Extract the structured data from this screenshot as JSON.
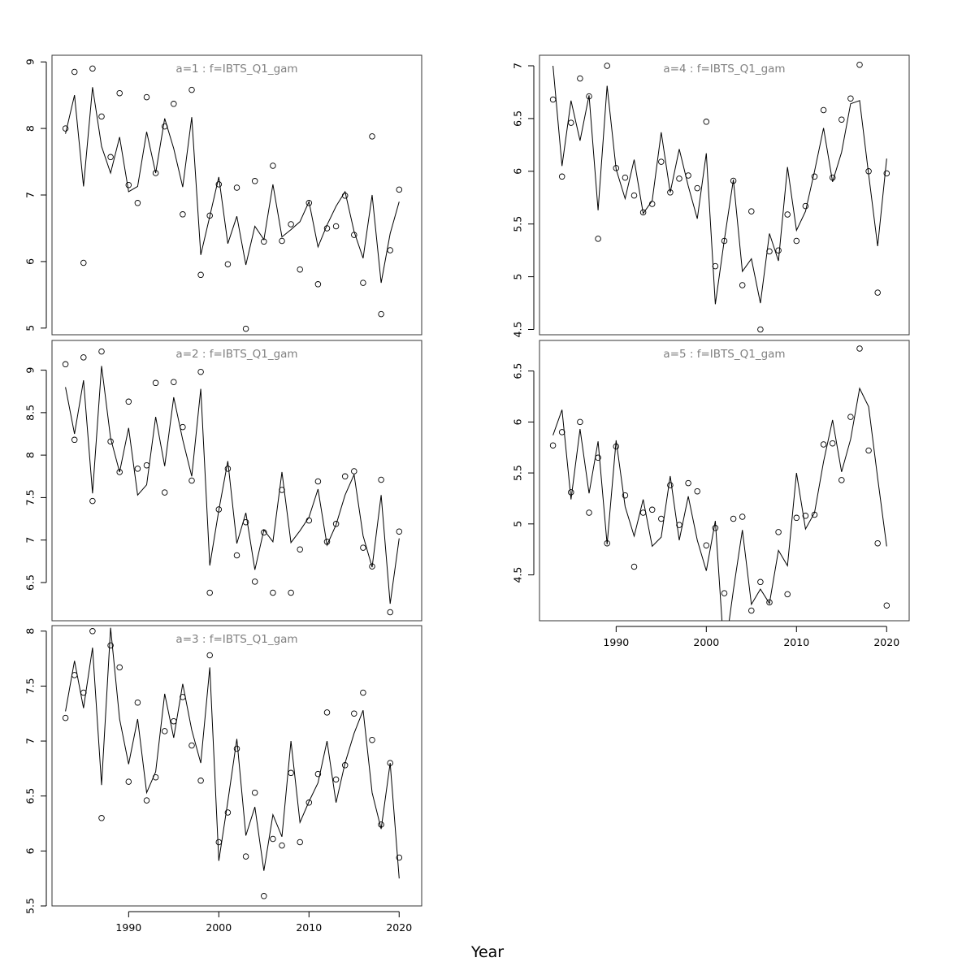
{
  "xlabel": "Year",
  "colors": {
    "line": "#000000",
    "points": "#000000",
    "title": "#808080",
    "frame": "#333333"
  },
  "chart_data": [
    {
      "type": "line",
      "title": "a=1  :  f=IBTS_Q1_gam",
      "xlim": [
        1981.5,
        2022.5
      ],
      "ylim": [
        4.9,
        9.1
      ],
      "yticks": [
        5,
        6,
        7,
        8,
        9
      ],
      "xticks": [
        1990,
        2000,
        2010,
        2020
      ],
      "show_xticks": false,
      "grid": false,
      "series": [
        {
          "kind": "line",
          "x": [
            1983,
            1984,
            1985,
            1986,
            1987,
            1988,
            1989,
            1990,
            1991,
            1992,
            1993,
            1994,
            1995,
            1996,
            1997,
            1998,
            1999,
            2000,
            2001,
            2002,
            2003,
            2004,
            2005,
            2006,
            2007,
            2008,
            2009,
            2010,
            2011,
            2012,
            2013,
            2014,
            2015,
            2016,
            2017,
            2018,
            2019,
            2020
          ],
          "y": [
            7.92,
            8.5,
            7.13,
            8.62,
            7.73,
            7.33,
            7.87,
            7.05,
            7.13,
            7.95,
            7.33,
            8.15,
            7.7,
            7.12,
            8.17,
            6.1,
            6.68,
            7.27,
            6.27,
            6.68,
            5.95,
            6.53,
            6.33,
            7.16,
            6.37,
            6.48,
            6.6,
            6.9,
            6.22,
            6.55,
            6.83,
            7.05,
            6.45,
            6.05,
            7.0,
            5.68,
            6.42,
            6.9
          ]
        },
        {
          "kind": "points",
          "x": [
            1983,
            1984,
            1985,
            1986,
            1987,
            1988,
            1989,
            1990,
            1991,
            1992,
            1993,
            1994,
            1995,
            1996,
            1997,
            1998,
            1999,
            2000,
            2001,
            2002,
            2003,
            2004,
            2005,
            2006,
            2007,
            2008,
            2009,
            2010,
            2011,
            2012,
            2013,
            2014,
            2015,
            2016,
            2017,
            2018,
            2019,
            2020
          ],
          "y": [
            8.0,
            8.85,
            5.98,
            8.9,
            8.18,
            7.57,
            8.53,
            7.15,
            6.88,
            8.47,
            7.33,
            8.03,
            8.37,
            6.71,
            8.58,
            5.8,
            6.69,
            7.16,
            5.96,
            7.11,
            4.99,
            7.21,
            6.3,
            7.44,
            6.31,
            6.56,
            5.88,
            6.88,
            5.66,
            6.5,
            6.53,
            6.99,
            6.4,
            5.68,
            7.88,
            5.21,
            6.17,
            7.08
          ]
        }
      ]
    },
    {
      "type": "line",
      "title": "a=2  :  f=IBTS_Q1_gam",
      "xlim": [
        1981.5,
        2022.5
      ],
      "ylim": [
        6.05,
        9.35
      ],
      "yticks": [
        6.5,
        7.0,
        7.5,
        8.0,
        8.5,
        9.0
      ],
      "xticks": [
        1990,
        2000,
        2010,
        2020
      ],
      "show_xticks": false,
      "grid": false,
      "series": [
        {
          "kind": "line",
          "x": [
            1983,
            1984,
            1985,
            1986,
            1987,
            1988,
            1989,
            1990,
            1991,
            1992,
            1993,
            1994,
            1995,
            1996,
            1997,
            1998,
            1999,
            2000,
            2001,
            2002,
            2003,
            2004,
            2005,
            2006,
            2007,
            2008,
            2009,
            2010,
            2011,
            2012,
            2013,
            2014,
            2015,
            2016,
            2017,
            2018,
            2019,
            2020
          ],
          "y": [
            8.8,
            8.25,
            8.88,
            7.55,
            9.05,
            8.2,
            7.8,
            8.32,
            7.53,
            7.65,
            8.45,
            7.87,
            8.68,
            8.18,
            7.75,
            8.78,
            6.7,
            7.35,
            7.93,
            6.96,
            7.32,
            6.65,
            7.12,
            6.98,
            7.8,
            6.97,
            7.11,
            7.27,
            7.6,
            6.94,
            7.18,
            7.53,
            7.77,
            7.05,
            6.68,
            7.53,
            6.25,
            7.02
          ]
        },
        {
          "kind": "points",
          "x": [
            1983,
            1984,
            1985,
            1986,
            1987,
            1988,
            1989,
            1990,
            1991,
            1992,
            1993,
            1994,
            1995,
            1996,
            1997,
            1998,
            1999,
            2000,
            2001,
            2002,
            2003,
            2004,
            2005,
            2006,
            2007,
            2008,
            2009,
            2010,
            2011,
            2012,
            2013,
            2014,
            2015,
            2016,
            2017,
            2018,
            2019,
            2020
          ],
          "y": [
            9.07,
            8.18,
            9.15,
            7.46,
            9.22,
            8.16,
            7.8,
            8.63,
            7.84,
            7.88,
            8.85,
            7.56,
            8.86,
            8.33,
            7.7,
            8.98,
            6.38,
            7.36,
            7.84,
            6.82,
            7.21,
            6.51,
            7.09,
            6.38,
            7.59,
            6.38,
            6.89,
            7.23,
            7.69,
            6.98,
            7.19,
            7.75,
            7.81,
            6.91,
            6.69,
            7.71,
            6.15,
            7.1
          ]
        }
      ]
    },
    {
      "type": "line",
      "title": "a=3  :  f=IBTS_Q1_gam",
      "xlim": [
        1981.5,
        2022.5
      ],
      "ylim": [
        5.5,
        8.05
      ],
      "yticks": [
        5.5,
        6.0,
        6.5,
        7.0,
        7.5,
        8.0
      ],
      "xticks": [
        1990,
        2000,
        2010,
        2020
      ],
      "show_xticks": true,
      "grid": false,
      "series": [
        {
          "kind": "line",
          "x": [
            1983,
            1984,
            1985,
            1986,
            1987,
            1988,
            1989,
            1990,
            1991,
            1992,
            1993,
            1994,
            1995,
            1996,
            1997,
            1998,
            1999,
            2000,
            2001,
            2002,
            2003,
            2004,
            2005,
            2006,
            2007,
            2008,
            2009,
            2010,
            2011,
            2012,
            2013,
            2014,
            2015,
            2016,
            2017,
            2018,
            2019,
            2020
          ],
          "y": [
            7.27,
            7.73,
            7.3,
            7.85,
            6.6,
            8.03,
            7.2,
            6.79,
            7.2,
            6.53,
            6.72,
            7.43,
            7.03,
            7.52,
            7.1,
            6.8,
            7.67,
            5.91,
            6.45,
            7.02,
            6.14,
            6.4,
            5.82,
            6.33,
            6.13,
            7.0,
            6.26,
            6.45,
            6.62,
            7.0,
            6.44,
            6.8,
            7.07,
            7.28,
            6.53,
            6.2,
            6.8,
            5.75
          ]
        },
        {
          "kind": "points",
          "x": [
            1983,
            1984,
            1985,
            1986,
            1987,
            1988,
            1989,
            1990,
            1991,
            1992,
            1993,
            1994,
            1995,
            1996,
            1997,
            1998,
            1999,
            2000,
            2001,
            2002,
            2003,
            2004,
            2005,
            2006,
            2007,
            2008,
            2009,
            2010,
            2011,
            2012,
            2013,
            2014,
            2015,
            2016,
            2017,
            2018,
            2019,
            2020
          ],
          "y": [
            7.21,
            7.6,
            7.44,
            8.0,
            6.3,
            7.87,
            7.67,
            6.63,
            7.35,
            6.46,
            6.67,
            7.09,
            7.18,
            7.4,
            6.96,
            6.64,
            7.78,
            6.08,
            6.35,
            6.93,
            5.95,
            6.53,
            5.59,
            6.11,
            6.05,
            6.71,
            6.08,
            6.44,
            6.7,
            7.26,
            6.65,
            6.78,
            7.25,
            7.44,
            7.01,
            6.24,
            6.8,
            5.94
          ]
        }
      ]
    },
    {
      "type": "line",
      "title": "a=4  :  f=IBTS_Q1_gam",
      "xlim": [
        1981.5,
        2022.5
      ],
      "ylim": [
        4.45,
        7.1
      ],
      "yticks": [
        4.5,
        5.0,
        5.5,
        6.0,
        6.5,
        7.0
      ],
      "xticks": [
        1990,
        2000,
        2010,
        2020
      ],
      "show_xticks": false,
      "grid": false,
      "series": [
        {
          "kind": "line",
          "x": [
            1983,
            1984,
            1985,
            1986,
            1987,
            1988,
            1989,
            1990,
            1991,
            1992,
            1993,
            1994,
            1995,
            1996,
            1997,
            1998,
            1999,
            2000,
            2001,
            2002,
            2003,
            2004,
            2005,
            2006,
            2007,
            2008,
            2009,
            2010,
            2011,
            2012,
            2013,
            2014,
            2015,
            2016,
            2017,
            2018,
            2019,
            2020
          ],
          "y": [
            7.0,
            6.05,
            6.67,
            6.29,
            6.72,
            5.63,
            6.81,
            6.02,
            5.74,
            6.11,
            5.6,
            5.72,
            6.37,
            5.8,
            6.21,
            5.86,
            5.55,
            6.17,
            4.74,
            5.35,
            5.92,
            5.05,
            5.17,
            4.75,
            5.41,
            5.15,
            6.04,
            5.44,
            5.62,
            6.0,
            6.41,
            5.9,
            6.18,
            6.64,
            6.67,
            5.97,
            5.29,
            6.12
          ]
        },
        {
          "kind": "points",
          "x": [
            1983,
            1984,
            1985,
            1986,
            1987,
            1988,
            1989,
            1990,
            1991,
            1992,
            1993,
            1994,
            1995,
            1996,
            1997,
            1998,
            1999,
            2000,
            2001,
            2002,
            2003,
            2004,
            2005,
            2006,
            2007,
            2008,
            2009,
            2010,
            2011,
            2012,
            2013,
            2014,
            2015,
            2016,
            2017,
            2018,
            2019,
            2020
          ],
          "y": [
            6.68,
            5.95,
            6.46,
            6.88,
            6.71,
            5.36,
            7.0,
            6.03,
            5.94,
            5.77,
            5.61,
            5.69,
            6.09,
            5.8,
            5.93,
            5.96,
            5.84,
            6.47,
            5.1,
            5.34,
            5.91,
            4.92,
            5.62,
            4.5,
            5.24,
            5.25,
            5.59,
            5.34,
            5.67,
            5.95,
            6.58,
            5.94,
            6.49,
            6.69,
            7.01,
            6.0,
            4.85,
            5.98
          ]
        }
      ]
    },
    {
      "type": "line",
      "title": "a=5  :  f=IBTS_Q1_gam",
      "xlim": [
        1981.5,
        2022.5
      ],
      "ylim": [
        4.05,
        6.8
      ],
      "yticks": [
        4.5,
        5.0,
        5.5,
        6.0,
        6.5
      ],
      "xticks": [
        1990,
        2000,
        2010,
        2020
      ],
      "show_xticks": true,
      "grid": false,
      "series": [
        {
          "kind": "line",
          "x": [
            1983,
            1984,
            1985,
            1986,
            1987,
            1988,
            1989,
            1990,
            1991,
            1992,
            1993,
            1994,
            1995,
            1996,
            1997,
            1998,
            1999,
            2000,
            2001,
            2002,
            2003,
            2004,
            2005,
            2006,
            2007,
            2008,
            2009,
            2010,
            2011,
            2012,
            2013,
            2014,
            2015,
            2016,
            2017,
            2018,
            2019,
            2020
          ],
          "y": [
            5.87,
            6.12,
            5.24,
            5.93,
            5.3,
            5.81,
            4.8,
            5.82,
            5.17,
            4.88,
            5.24,
            4.78,
            4.87,
            5.47,
            4.84,
            5.27,
            4.84,
            4.54,
            5.03,
            3.7,
            4.35,
            4.94,
            4.21,
            4.36,
            4.22,
            4.74,
            4.59,
            5.5,
            4.95,
            5.11,
            5.61,
            6.02,
            5.51,
            5.83,
            6.33,
            6.15,
            5.45,
            4.78
          ]
        },
        {
          "kind": "points",
          "x": [
            1983,
            1984,
            1985,
            1986,
            1987,
            1988,
            1989,
            1990,
            1991,
            1992,
            1993,
            1994,
            1995,
            1996,
            1997,
            1998,
            1999,
            2000,
            2001,
            2002,
            2003,
            2004,
            2005,
            2006,
            2007,
            2008,
            2009,
            2010,
            2011,
            2012,
            2013,
            2014,
            2015,
            2016,
            2017,
            2018,
            2019,
            2020
          ],
          "y": [
            5.77,
            5.9,
            5.31,
            6.0,
            5.11,
            5.65,
            4.81,
            5.76,
            5.28,
            4.58,
            5.11,
            5.14,
            5.05,
            5.38,
            4.99,
            5.4,
            5.32,
            4.79,
            4.96,
            4.32,
            5.05,
            5.07,
            4.15,
            4.43,
            4.23,
            4.92,
            4.31,
            5.06,
            5.08,
            5.09,
            5.78,
            5.79,
            5.43,
            6.05,
            6.72,
            5.72,
            4.81,
            4.2
          ]
        }
      ]
    }
  ]
}
